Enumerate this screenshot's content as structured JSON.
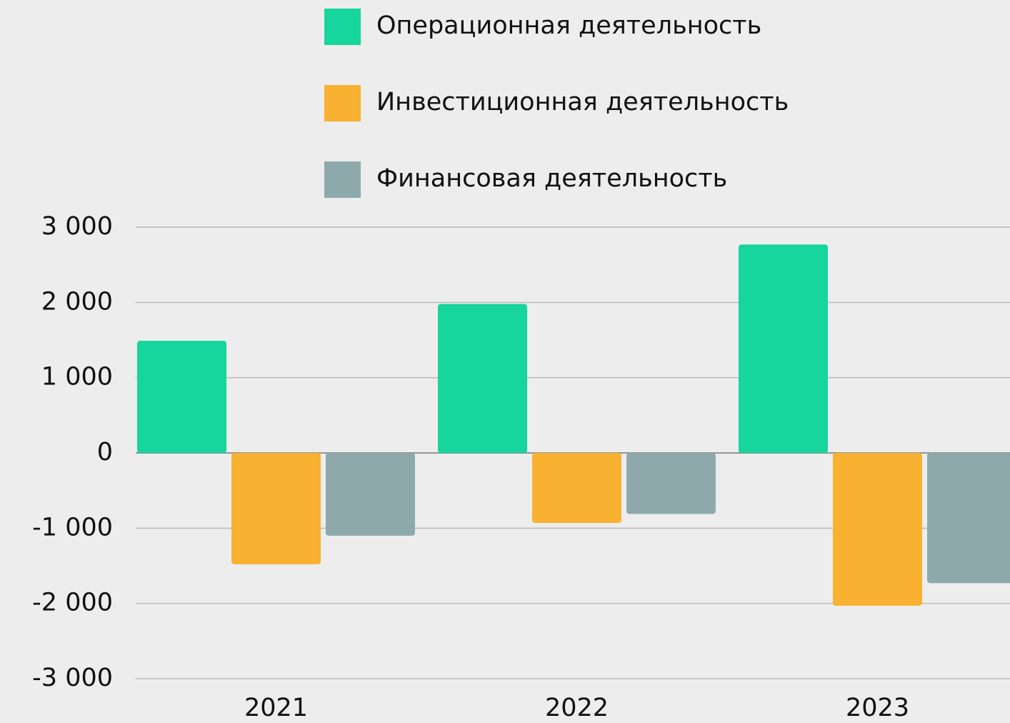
{
  "chart_data": {
    "type": "bar",
    "categories": [
      "2021",
      "2022",
      "2023"
    ],
    "series": [
      {
        "name": "Операционная деятельность",
        "color": "#16d59d",
        "values": [
          1490,
          1980,
          2770
        ]
      },
      {
        "name": "Инвестиционная деятельность",
        "color": "#f9b132",
        "values": [
          -1480,
          -930,
          -2030
        ]
      },
      {
        "name": "Финансовая деятельность",
        "color": "#8ea9ac",
        "values": [
          -1100,
          -810,
          -1730
        ]
      }
    ],
    "ylim": [
      -3000,
      3000
    ],
    "yticks": [
      {
        "value": -3000,
        "label": "-3 000"
      },
      {
        "value": -2000,
        "label": "-2 000"
      },
      {
        "value": -1000,
        "label": "-1 000"
      },
      0,
      {
        "value": 1000,
        "label": "1 000"
      },
      {
        "value": 2000,
        "label": "2 000"
      },
      {
        "value": 3000,
        "label": "3 000"
      }
    ],
    "grid": true
  }
}
